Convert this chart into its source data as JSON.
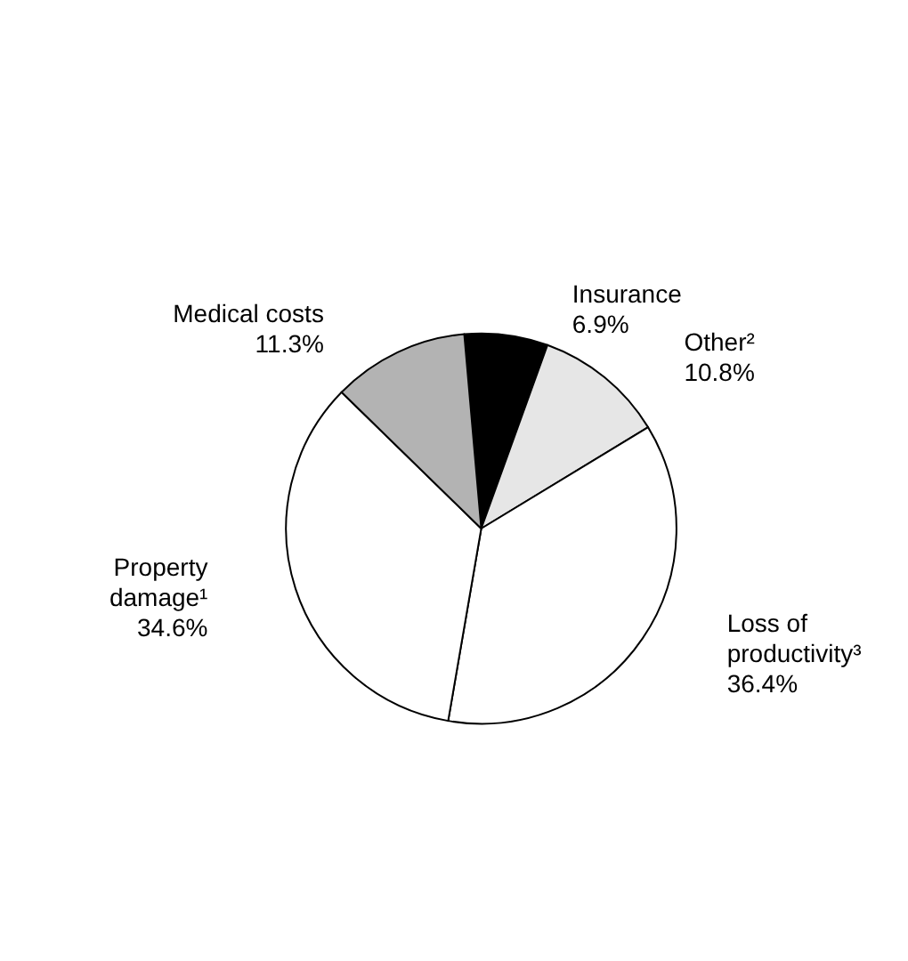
{
  "chart_data": {
    "type": "pie",
    "categories": [
      "Insurance",
      "Other²",
      "Loss of productivity³",
      "Property damage¹",
      "Medical costs"
    ],
    "values": [
      6.9,
      10.8,
      36.4,
      34.6,
      11.3
    ],
    "value_labels": [
      "6.9%",
      "10.8%",
      "36.4%",
      "34.6%",
      "11.3%"
    ],
    "colors": [
      "#000000",
      "#e6e6e6",
      "#ffffff",
      "#ffffff",
      "#b3b3b3"
    ],
    "legend": false
  }
}
